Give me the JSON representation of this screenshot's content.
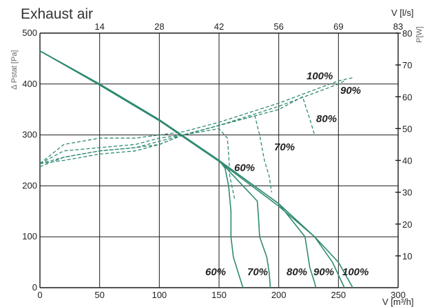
{
  "chart_data": {
    "type": "line",
    "title": "Exhaust air",
    "ylabel": "Δ Pstat [Pa]",
    "xlabel": "V [m³/h]",
    "x2label": "V [l/s]",
    "y2label": "P[W]",
    "xlim": [
      0,
      300
    ],
    "ylim": [
      0,
      500
    ],
    "x2lim": [
      0,
      83.33
    ],
    "y2lim": [
      0,
      80
    ],
    "x_ticks": [
      "0",
      "50",
      "100",
      "150",
      "200",
      "250",
      "300"
    ],
    "y_ticks": [
      "0",
      "100",
      "200",
      "300",
      "400",
      "500"
    ],
    "x2_ticks": [
      "14",
      "28",
      "42",
      "56",
      "69",
      "83"
    ],
    "y2_ticks": [
      "10",
      "20",
      "30",
      "40",
      "50",
      "60",
      "70",
      "80"
    ],
    "grid": true,
    "colors": {
      "curve": "#2e8a72",
      "grid": "#1a1a1a"
    },
    "pressure_curves": [
      {
        "name": "60%",
        "x": [
          0,
          50,
          100,
          150,
          155,
          158,
          160,
          160,
          162,
          166,
          170
        ],
        "y": [
          465,
          400,
          330,
          250,
          235,
          200,
          150,
          100,
          60,
          30,
          0
        ]
      },
      {
        "name": "70%",
        "x": [
          0,
          50,
          100,
          150,
          170,
          182,
          183,
          184,
          190,
          192,
          193
        ],
        "y": [
          465,
          400,
          330,
          250,
          200,
          170,
          140,
          100,
          60,
          30,
          0
        ]
      },
      {
        "name": "80%",
        "x": [
          0,
          50,
          100,
          150,
          200,
          222,
          224,
          226,
          230,
          231
        ],
        "y": [
          465,
          400,
          330,
          250,
          165,
          100,
          70,
          40,
          10,
          0
        ]
      },
      {
        "name": "90%",
        "x": [
          0,
          50,
          100,
          150,
          200,
          230,
          245,
          255
        ],
        "y": [
          465,
          398,
          328,
          248,
          160,
          100,
          50,
          0
        ]
      },
      {
        "name": "100%",
        "x": [
          0,
          50,
          100,
          150,
          200,
          230,
          250,
          262
        ],
        "y": [
          465,
          398,
          328,
          250,
          165,
          100,
          50,
          0
        ]
      }
    ],
    "power_curves": [
      {
        "name": "60%",
        "x": [
          0,
          20,
          50,
          80,
          100,
          120,
          150,
          157,
          158,
          159,
          163
        ],
        "y": [
          39,
          40,
          42,
          43,
          45,
          48,
          50,
          47,
          42,
          35,
          28
        ]
      },
      {
        "name": "70%",
        "x": [
          0,
          20,
          50,
          80,
          100,
          120,
          150,
          180,
          184,
          188,
          192,
          194
        ],
        "y": [
          39,
          41,
          43,
          44,
          45,
          48,
          51,
          54,
          48,
          40,
          35,
          30
        ]
      },
      {
        "name": "80%",
        "x": [
          0,
          20,
          50,
          80,
          100,
          120,
          150,
          200,
          220,
          226,
          230
        ],
        "y": [
          38,
          41,
          43,
          44,
          46,
          48,
          51,
          56,
          60,
          53,
          48
        ]
      },
      {
        "name": "90%",
        "x": [
          0,
          20,
          50,
          80,
          100,
          120,
          150,
          200,
          250,
          255
        ],
        "y": [
          39,
          43,
          44,
          45,
          47,
          48,
          51,
          57,
          64,
          65
        ]
      },
      {
        "name": "100%",
        "x": [
          0,
          20,
          50,
          80,
          100,
          120,
          150,
          200,
          250,
          262
        ],
        "y": [
          39,
          45,
          47,
          47,
          48,
          49,
          52,
          58,
          65,
          66
        ]
      }
    ],
    "annotations": {
      "bottom": [
        "60%",
        "70%",
        "80%",
        "90%",
        "100%"
      ],
      "power": [
        "100%",
        "90%",
        "80%",
        "70%",
        "60%"
      ]
    }
  }
}
